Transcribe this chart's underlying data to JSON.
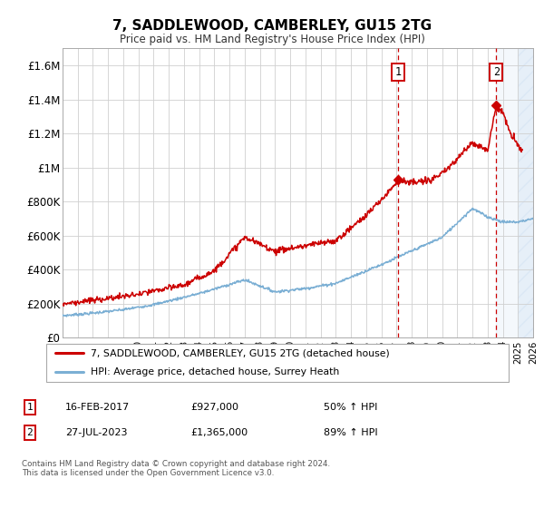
{
  "title": "7, SADDLEWOOD, CAMBERLEY, GU15 2TG",
  "subtitle": "Price paid vs. HM Land Registry's House Price Index (HPI)",
  "hpi_color": "#7bafd4",
  "price_color": "#cc0000",
  "marker1_year": 2017.12,
  "marker1_price": 927000,
  "marker2_year": 2023.57,
  "marker2_price": 1365000,
  "legend_line1": "7, SADDLEWOOD, CAMBERLEY, GU15 2TG (detached house)",
  "legend_line2": "HPI: Average price, detached house, Surrey Heath",
  "marker1_date": "16-FEB-2017",
  "marker1_amount": "£927,000",
  "marker1_pct": "50% ↑ HPI",
  "marker2_date": "27-JUL-2023",
  "marker2_amount": "£1,365,000",
  "marker2_pct": "89% ↑ HPI",
  "footnote": "Contains HM Land Registry data © Crown copyright and database right 2024.\nThis data is licensed under the Open Government Licence v3.0.",
  "xlim_start": 1995,
  "xlim_end": 2026,
  "ylim_min": 0,
  "ylim_max": 1700000,
  "yticks": [
    0,
    200000,
    400000,
    600000,
    800000,
    1000000,
    1200000,
    1400000,
    1600000
  ],
  "ytick_labels": [
    "£0",
    "£200K",
    "£400K",
    "£600K",
    "£800K",
    "£1M",
    "£1.2M",
    "£1.4M",
    "£1.6M"
  ],
  "shade_start": 2023.57,
  "shade_end": 2026,
  "hatch_start": 2025.0
}
